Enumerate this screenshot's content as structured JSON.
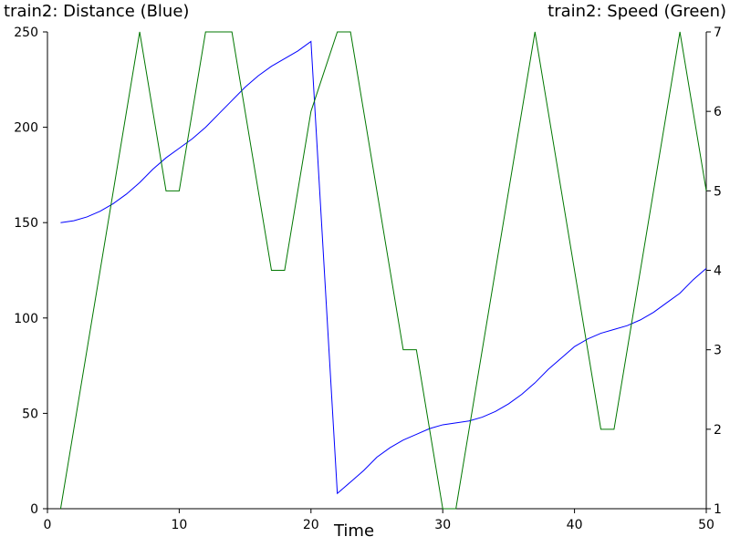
{
  "chart_data": {
    "type": "line",
    "left_title": "train2: Distance (Blue)",
    "right_title": "train2: Speed (Green)",
    "xlabel": "Time",
    "xlim": [
      0,
      50
    ],
    "ylim_left": [
      0,
      250
    ],
    "ylim_right": [
      1,
      7
    ],
    "xticks": [
      0,
      10,
      20,
      30,
      40,
      50
    ],
    "yticks_left": [
      0,
      50,
      100,
      150,
      200,
      250
    ],
    "yticks_right": [
      1,
      2,
      3,
      4,
      5,
      6,
      7
    ],
    "grid": false,
    "series": [
      {
        "axis": "left",
        "color": "#0000ff",
        "points": [
          [
            1,
            150
          ],
          [
            2,
            151
          ],
          [
            3,
            153
          ],
          [
            4,
            156
          ],
          [
            5,
            160
          ],
          [
            6,
            165
          ],
          [
            7,
            171
          ],
          [
            8,
            178
          ],
          [
            9,
            184
          ],
          [
            10,
            189
          ],
          [
            11,
            194
          ],
          [
            12,
            200
          ],
          [
            13,
            207
          ],
          [
            14,
            214
          ],
          [
            15,
            221
          ],
          [
            16,
            227
          ],
          [
            17,
            232
          ],
          [
            18,
            236
          ],
          [
            19,
            240
          ],
          [
            20,
            245
          ],
          [
            22,
            8
          ],
          [
            23,
            14
          ],
          [
            24,
            20
          ],
          [
            25,
            27
          ],
          [
            26,
            32
          ],
          [
            27,
            36
          ],
          [
            28,
            39
          ],
          [
            29,
            42
          ],
          [
            30,
            44
          ],
          [
            31,
            45
          ],
          [
            32,
            46
          ],
          [
            33,
            48
          ],
          [
            34,
            51
          ],
          [
            35,
            55
          ],
          [
            36,
            60
          ],
          [
            37,
            66
          ],
          [
            38,
            73
          ],
          [
            39,
            79
          ],
          [
            40,
            85
          ],
          [
            41,
            89
          ],
          [
            42,
            92
          ],
          [
            43,
            94
          ],
          [
            44,
            96
          ],
          [
            45,
            99
          ],
          [
            46,
            103
          ],
          [
            47,
            108
          ],
          [
            48,
            113
          ],
          [
            49,
            120
          ],
          [
            50,
            126
          ]
        ]
      },
      {
        "axis": "right",
        "color": "#007700",
        "points": [
          [
            1,
            1
          ],
          [
            7,
            7
          ],
          [
            9,
            5
          ],
          [
            10,
            5
          ],
          [
            12,
            7
          ],
          [
            14,
            7
          ],
          [
            17,
            4
          ],
          [
            18,
            4
          ],
          [
            20,
            6
          ],
          [
            22,
            7
          ],
          [
            23,
            7
          ],
          [
            27,
            3
          ],
          [
            28,
            3
          ],
          [
            30,
            1
          ],
          [
            31,
            1
          ],
          [
            37,
            7
          ],
          [
            42,
            2
          ],
          [
            43,
            2
          ],
          [
            48,
            7
          ],
          [
            50,
            5
          ]
        ]
      }
    ]
  }
}
